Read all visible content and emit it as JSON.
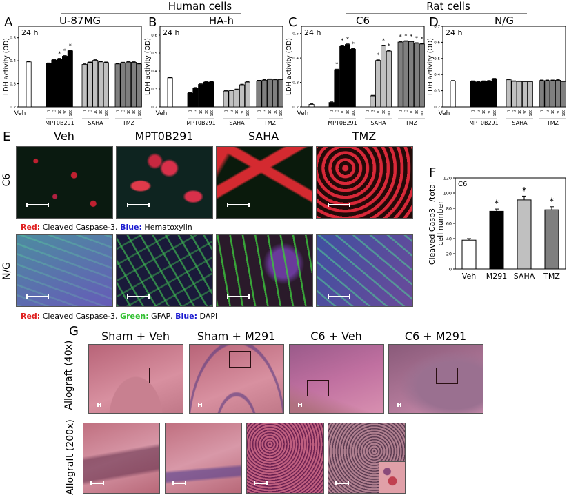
{
  "headers": {
    "human_cells": "Human cells",
    "rat_cells": "Rat cells"
  },
  "panels": {
    "A": "A",
    "B": "B",
    "C": "C",
    "D": "D",
    "E": "E",
    "F": "F",
    "G": "G"
  },
  "chart_data": [
    {
      "panel": "A",
      "type": "bar",
      "title": "U-87MG",
      "annotation": "24 h",
      "ylabel": "LDH activity (OD)",
      "ylim": [
        0.2,
        0.55
      ],
      "yticks": [
        0.2,
        0.3,
        0.4,
        0.5
      ],
      "groups": [
        "Veh",
        "MPT0B291",
        "SAHA",
        "TMZ"
      ],
      "doses": [
        "1",
        "3",
        "10",
        "30",
        "100"
      ],
      "series": [
        {
          "name": "Veh",
          "color": "#ffffff",
          "values": [
            0.395
          ]
        },
        {
          "name": "MPT0B291",
          "color": "#000000",
          "values": [
            0.388,
            0.403,
            0.408,
            0.42,
            0.443
          ],
          "significant": [
            false,
            false,
            true,
            true,
            true
          ]
        },
        {
          "name": "SAHA",
          "color": "#c0c0c0",
          "values": [
            0.384,
            0.392,
            0.402,
            0.395,
            0.392
          ]
        },
        {
          "name": "TMZ",
          "color": "#7f7f7f",
          "values": [
            0.386,
            0.391,
            0.394,
            0.393,
            0.386
          ]
        }
      ]
    },
    {
      "panel": "B",
      "type": "bar",
      "title": "HA-h",
      "annotation": "24 h",
      "ylabel": "LDH activity (OD)",
      "ylim": [
        0.2,
        0.65
      ],
      "yticks": [
        0.2,
        0.3,
        0.4,
        0.5,
        0.6
      ],
      "groups": [
        "Veh",
        "MPT0B291",
        "SAHA",
        "TMZ"
      ],
      "doses": [
        "1",
        "3",
        "10",
        "30",
        "100"
      ],
      "series": [
        {
          "name": "Veh",
          "color": "#ffffff",
          "values": [
            0.362
          ]
        },
        {
          "name": "MPT0B291",
          "color": "#000000",
          "values": [
            0.276,
            0.305,
            0.325,
            0.338,
            0.339
          ]
        },
        {
          "name": "SAHA",
          "color": "#c0c0c0",
          "values": [
            0.288,
            0.29,
            0.296,
            0.323,
            0.338
          ]
        },
        {
          "name": "TMZ",
          "color": "#7f7f7f",
          "values": [
            0.345,
            0.349,
            0.353,
            0.351,
            0.352
          ]
        }
      ]
    },
    {
      "panel": "C",
      "type": "bar",
      "title": "C6",
      "annotation": "24 h",
      "ylabel": "LDH activity (OD)",
      "ylim": [
        0.2,
        0.53
      ],
      "yticks": [
        0.2,
        0.3,
        0.4,
        0.5
      ],
      "groups": [
        "Veh",
        "MPT0B291",
        "SAHA",
        "TMZ"
      ],
      "doses": [
        "1",
        "3",
        "10",
        "30",
        "100"
      ],
      "series": [
        {
          "name": "Veh",
          "color": "#ffffff",
          "values": [
            0.21
          ]
        },
        {
          "name": "MPT0B291",
          "color": "#000000",
          "values": [
            0.218,
            0.352,
            0.45,
            0.455,
            0.436
          ],
          "significant": [
            false,
            true,
            true,
            true,
            true
          ]
        },
        {
          "name": "SAHA",
          "color": "#c0c0c0",
          "values": [
            0.2,
            0.245,
            0.39,
            0.45,
            0.428
          ],
          "significant": [
            false,
            false,
            true,
            true,
            true
          ]
        },
        {
          "name": "TMZ",
          "color": "#7f7f7f",
          "values": [
            0.465,
            0.468,
            0.467,
            0.46,
            0.457
          ],
          "significant": [
            true,
            true,
            true,
            true,
            true
          ]
        }
      ]
    },
    {
      "panel": "D",
      "type": "bar",
      "title": "N/G",
      "annotation": "24 h",
      "ylabel": "LDH activity (OD)",
      "ylim": [
        0.2,
        0.7
      ],
      "yticks": [
        0.2,
        0.3,
        0.4,
        0.5,
        0.6,
        0.7
      ],
      "groups": [
        "Veh",
        "MPT0B291",
        "SAHA",
        "TMZ"
      ],
      "doses": [
        "1",
        "3",
        "10",
        "30",
        "100"
      ],
      "series": [
        {
          "name": "Veh",
          "color": "#ffffff",
          "values": [
            0.36
          ]
        },
        {
          "name": "MPT0B291",
          "color": "#000000",
          "values": [
            0.358,
            0.354,
            0.358,
            0.36,
            0.373
          ]
        },
        {
          "name": "SAHA",
          "color": "#c0c0c0",
          "values": [
            0.368,
            0.358,
            0.357,
            0.356,
            0.356
          ]
        },
        {
          "name": "TMZ",
          "color": "#7f7f7f",
          "values": [
            0.363,
            0.363,
            0.363,
            0.365,
            0.357
          ]
        }
      ]
    },
    {
      "panel": "F",
      "type": "bar",
      "title": "",
      "annotation": "C6",
      "ylabel": "Cleaved Casp3+/total cell number",
      "ylim": [
        0,
        120
      ],
      "yticks": [
        0,
        20,
        40,
        60,
        80,
        100,
        120
      ],
      "categories": [
        "Veh",
        "M291",
        "SAHA",
        "TMZ"
      ],
      "values": [
        38,
        76,
        91,
        78
      ],
      "errors": [
        2,
        3,
        5,
        4
      ],
      "colors": [
        "#ffffff",
        "#000000",
        "#c0c0c0",
        "#7f7f7f"
      ],
      "significant": [
        false,
        true,
        true,
        true
      ]
    }
  ],
  "panel_e": {
    "columns": [
      "Veh",
      "MPT0B291",
      "SAHA",
      "TMZ"
    ],
    "rows": [
      "C6",
      "N/G"
    ],
    "legend_c6": {
      "red_label": "Red:",
      "red_text": " Cleaved Caspase-3, ",
      "blue_label": "Blue:",
      "blue_text": " Hematoxylin"
    },
    "legend_ng": {
      "red_label": "Red:",
      "red_text": " Cleaved Caspase-3, ",
      "green_label": "Green:",
      "green_text": " GFAP, ",
      "blue_label": "Blue:",
      "blue_text": " DAPI"
    }
  },
  "panel_g": {
    "columns": [
      "Sham + Veh",
      "Sham + M291",
      "C6 + Veh",
      "C6 + M291"
    ],
    "rows": [
      "Allograft (40x)",
      "Allograft (200x)"
    ]
  }
}
